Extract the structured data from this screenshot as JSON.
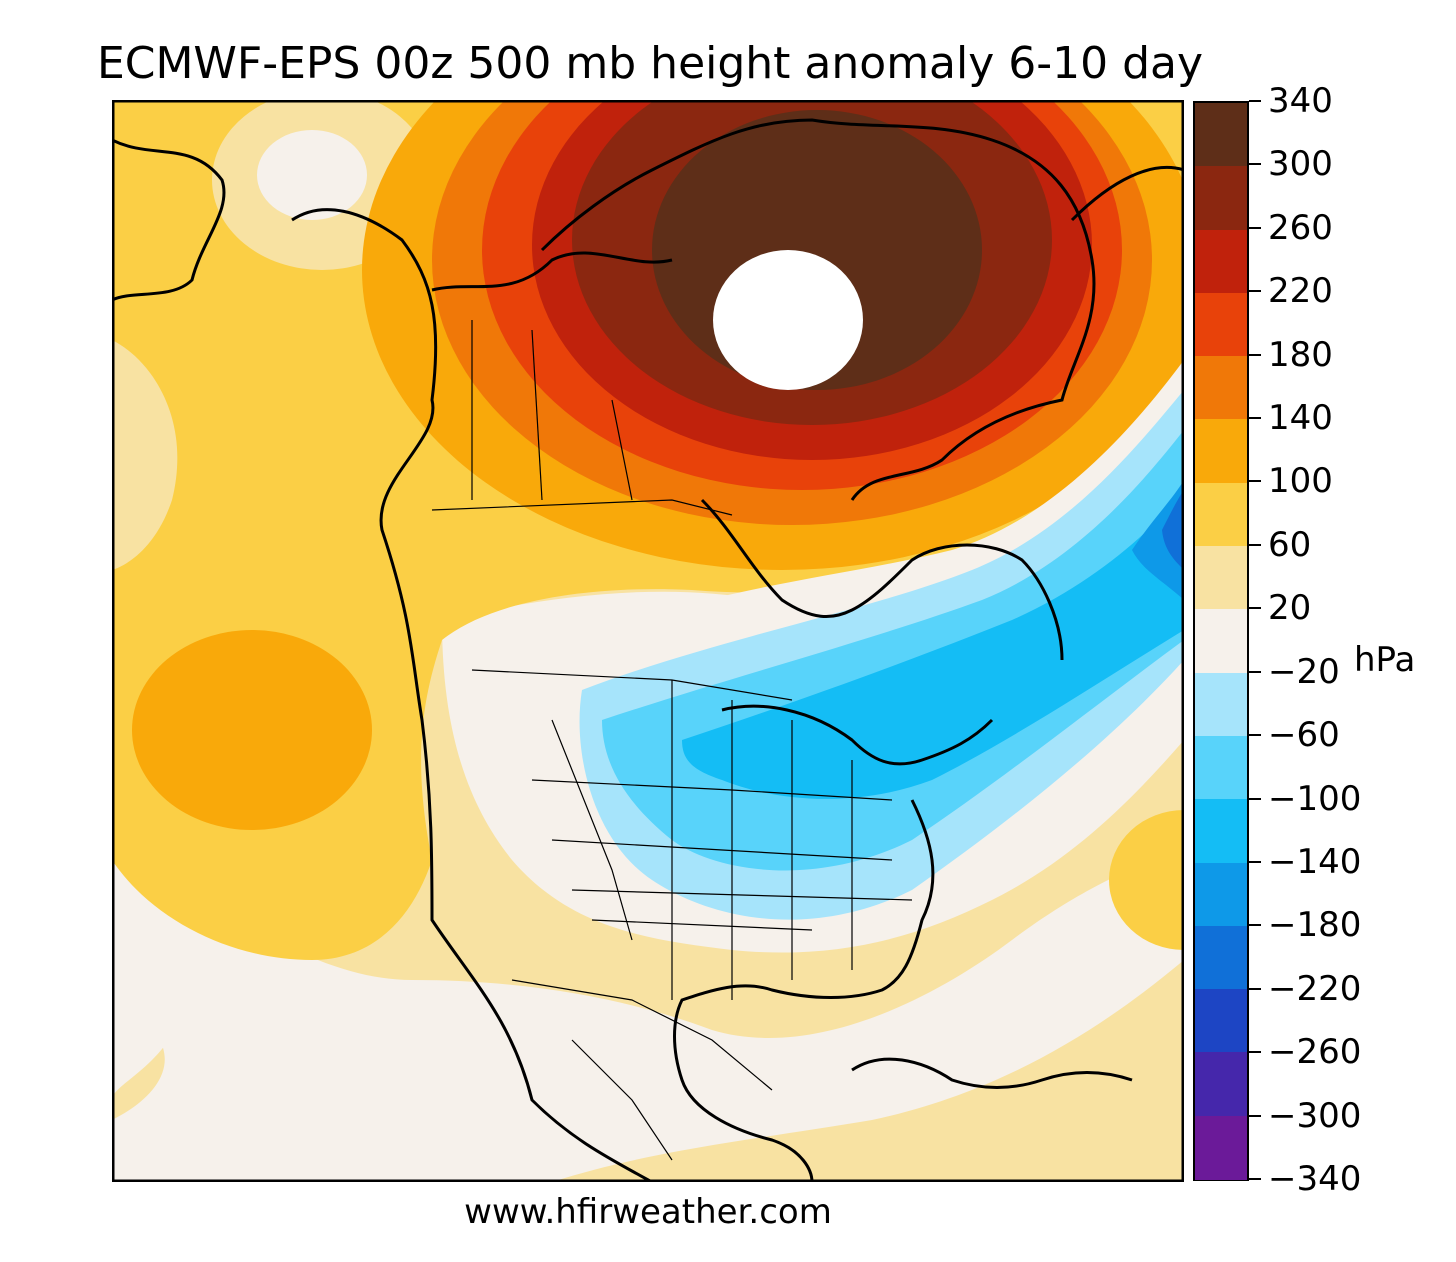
{
  "title": "ECMWF-EPS 00z 500 mb height anomaly 6-10 day",
  "colorbar": {
    "units": "hPa",
    "ticks": [
      "340",
      "300",
      "260",
      "220",
      "180",
      "140",
      "100",
      "60",
      "20",
      "−20",
      "−60",
      "−100",
      "−140",
      "−180",
      "−220",
      "−260",
      "−300",
      "−340"
    ],
    "colors": [
      "#5e2e18",
      "#8b2710",
      "#c0220c",
      "#e8420a",
      "#f07808",
      "#f9a90a",
      "#fbcf45",
      "#f8e2a2",
      "#f6f1eb",
      "#a6e4fb",
      "#58d3fa",
      "#14bdf5",
      "#0e99e8",
      "#1070d8",
      "#1d45c4",
      "#4527ab",
      "#6b1a99"
    ]
  },
  "colors": {
    "near_zero": "#f6f1eb",
    "pos_20_60": "#f8e2a2",
    "pos_60_100": "#fbcf45",
    "pos_100_140": "#f9a90a",
    "pos_140_180": "#f07808",
    "pos_180_220": "#e8420a",
    "pos_220_260": "#c0220c",
    "pos_260_300": "#8b2710",
    "pos_300_340": "#5e2e18",
    "neg_20_60": "#a6e4fb",
    "neg_60_100": "#58d3fa",
    "neg_100_140": "#14bdf5",
    "neg_140_180": "#0e99e8",
    "neg_180_220": "#1070d8"
  },
  "map": {
    "icons": [
      "coastline-outline",
      "state-province-borders",
      "north-pole-missing-data"
    ]
  },
  "footer": "www.hfirweather.com"
}
